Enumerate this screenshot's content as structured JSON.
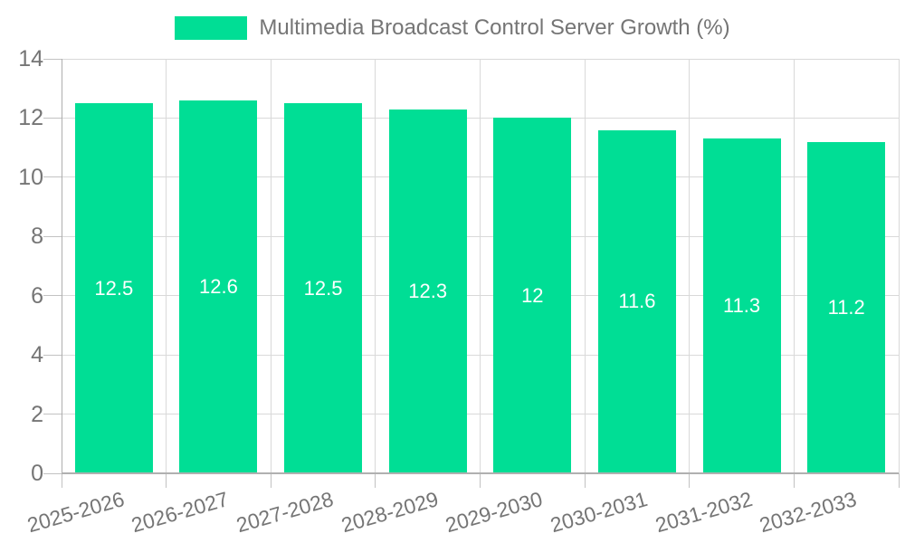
{
  "chart_data": {
    "type": "bar",
    "title": "Multimedia Broadcast Control Server Growth (%)",
    "categories": [
      "2025-2026",
      "2026-2027",
      "2027-2028",
      "2028-2029",
      "2029-2030",
      "2030-2031",
      "2031-2032",
      "2032-2033"
    ],
    "series": [
      {
        "name": "Multimedia Broadcast Control Server Growth (%)",
        "values": [
          12.5,
          12.6,
          12.5,
          12.3,
          12,
          11.6,
          11.3,
          11.2
        ],
        "value_labels": [
          "12.5",
          "12.6",
          "12.5",
          "12.3",
          "12",
          "11.6",
          "11.3",
          "11.2"
        ]
      }
    ],
    "xlabel": "",
    "ylabel": "",
    "ylim": [
      0,
      14
    ],
    "yticks": [
      "0",
      "2",
      "4",
      "6",
      "8",
      "10",
      "12",
      "14"
    ],
    "grid": true,
    "legend_position": "top",
    "colors": {
      "bar": "#00de95",
      "value_label_text": "#ffffff",
      "axis_text": "#757575",
      "gridline": "#d9d9d9",
      "axis_line": "#b0b0b0",
      "background": "#ffffff"
    }
  }
}
